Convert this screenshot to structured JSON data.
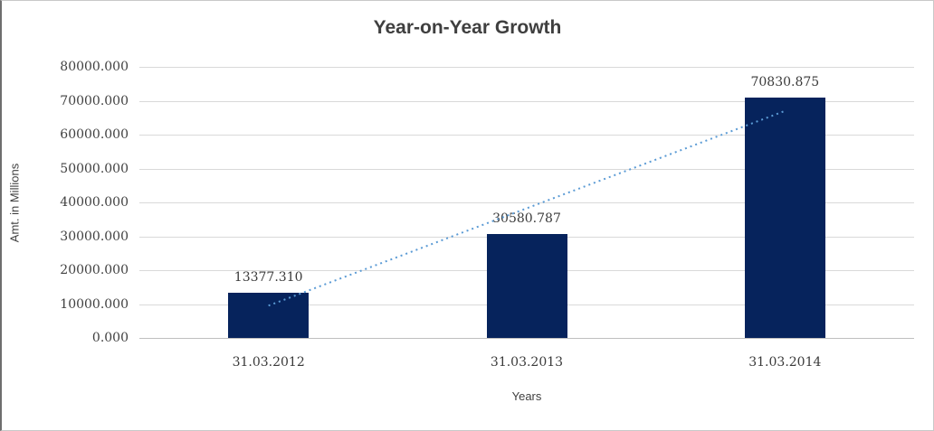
{
  "chart_data": {
    "type": "bar",
    "title": "Year-on-Year Growth",
    "xlabel": "Years",
    "ylabel": "Amt. in Millions",
    "categories": [
      "31.03.2012",
      "31.03.2013",
      "31.03.2014"
    ],
    "values": [
      13377.31,
      30580.787,
      70830.875
    ],
    "value_labels": [
      "13377.310",
      "30580.787",
      "70830.875"
    ],
    "ylim": [
      0,
      80000
    ],
    "ytick_values": [
      0,
      10000,
      20000,
      30000,
      40000,
      50000,
      60000,
      70000,
      80000
    ],
    "ytick_labels": [
      "0.000",
      "10000.000",
      "20000.000",
      "30000.000",
      "40000.000",
      "50000.000",
      "60000.000",
      "70000.000",
      "80000.000"
    ],
    "grid": true,
    "legend": "none",
    "colors": {
      "bar": "#06235c",
      "trendline": "#5b9bd5",
      "gridline": "#d9d9d9",
      "axis_line": "#bfbfbf",
      "title_text": "#3f3f3f",
      "label_text": "#3a3a3a"
    },
    "trendline": {
      "type": "linear",
      "style": "dotted",
      "start_value": 9536,
      "end_value": 66990
    }
  }
}
